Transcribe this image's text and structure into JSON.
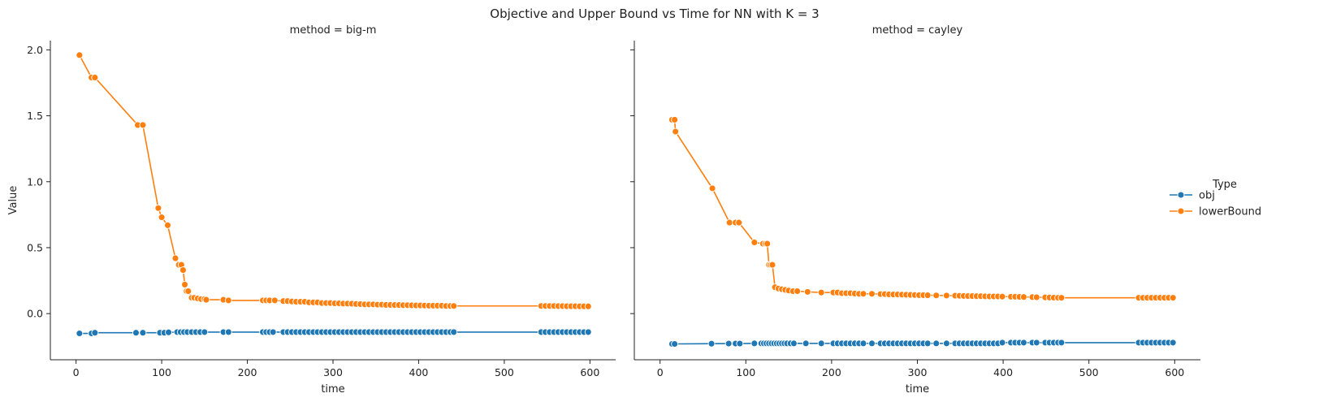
{
  "chart_data": {
    "type": "line",
    "title": "Objective and Upper Bound vs Time for NN with K = 3",
    "xlabel": "time",
    "ylabel": "Value",
    "xlim": [
      -30,
      630
    ],
    "ylim": [
      -0.35,
      2.07
    ],
    "xticks": [
      0,
      100,
      200,
      300,
      400,
      500,
      600
    ],
    "yticks": [
      0.0,
      0.5,
      1.0,
      1.5,
      2.0
    ],
    "ytick_labels": [
      "0.0",
      "0.5",
      "1.0",
      "1.5",
      "2.0"
    ],
    "grid": false,
    "legend": {
      "title": "Type",
      "placement": "right",
      "entries": [
        {
          "name": "obj",
          "color": "#1f77b4"
        },
        {
          "name": "lowerBound",
          "color": "#ff7f0e"
        }
      ]
    },
    "panels": [
      {
        "title": "method = big-m",
        "series": [
          {
            "name": "obj",
            "color": "#1f77b4",
            "x": [
              4,
              18,
              22,
              70,
              78,
              98,
              103,
              108,
              118,
              122,
              126,
              130,
              135,
              140,
              145,
              150,
              172,
              178,
              218,
              222,
              226,
              230,
              242,
              247,
              252,
              257,
              262,
              267,
              272,
              277,
              282,
              287,
              292,
              297,
              302,
              307,
              312,
              317,
              322,
              327,
              332,
              337,
              342,
              347,
              352,
              357,
              362,
              367,
              372,
              377,
              382,
              387,
              392,
              397,
              402,
              407,
              412,
              417,
              422,
              427,
              432,
              437,
              441,
              543,
              548,
              553,
              558,
              563,
              568,
              573,
              578,
              583,
              588,
              593,
              598
            ],
            "y": [
              -0.15,
              -0.15,
              -0.145,
              -0.145,
              -0.145,
              -0.145,
              -0.145,
              -0.142,
              -0.14,
              -0.14,
              -0.14,
              -0.14,
              -0.14,
              -0.14,
              -0.14,
              -0.14,
              -0.14,
              -0.14,
              -0.14,
              -0.14,
              -0.14,
              -0.14,
              -0.14,
              -0.14,
              -0.14,
              -0.14,
              -0.14,
              -0.14,
              -0.14,
              -0.14,
              -0.14,
              -0.14,
              -0.14,
              -0.14,
              -0.14,
              -0.14,
              -0.14,
              -0.14,
              -0.14,
              -0.14,
              -0.14,
              -0.14,
              -0.14,
              -0.14,
              -0.14,
              -0.14,
              -0.14,
              -0.14,
              -0.14,
              -0.14,
              -0.14,
              -0.14,
              -0.14,
              -0.14,
              -0.14,
              -0.14,
              -0.14,
              -0.14,
              -0.14,
              -0.14,
              -0.14,
              -0.14,
              -0.14,
              -0.14,
              -0.14,
              -0.14,
              -0.14,
              -0.14,
              -0.14,
              -0.14,
              -0.14,
              -0.14,
              -0.14,
              -0.14,
              -0.14
            ]
          },
          {
            "name": "lowerBound",
            "color": "#ff7f0e",
            "x": [
              4,
              18,
              22,
              72,
              78,
              96,
              100,
              107,
              116,
              120,
              123,
              125,
              127,
              129,
              131,
              135,
              138,
              142,
              146,
              150,
              152,
              172,
              178,
              218,
              222,
              226,
              232,
              242,
              247,
              252,
              257,
              262,
              267,
              272,
              277,
              282,
              287,
              292,
              297,
              302,
              307,
              312,
              317,
              322,
              327,
              332,
              337,
              342,
              347,
              352,
              357,
              362,
              367,
              372,
              377,
              382,
              387,
              392,
              397,
              402,
              407,
              412,
              417,
              422,
              427,
              432,
              437,
              441,
              543,
              548,
              553,
              558,
              563,
              568,
              573,
              578,
              583,
              588,
              593,
              598
            ],
            "y": [
              1.96,
              1.79,
              1.79,
              1.43,
              1.43,
              0.8,
              0.73,
              0.67,
              0.42,
              0.37,
              0.37,
              0.33,
              0.22,
              0.17,
              0.17,
              0.12,
              0.12,
              0.115,
              0.11,
              0.11,
              0.105,
              0.105,
              0.1,
              0.1,
              0.1,
              0.1,
              0.1,
              0.095,
              0.095,
              0.092,
              0.09,
              0.09,
              0.09,
              0.085,
              0.085,
              0.085,
              0.08,
              0.08,
              0.08,
              0.078,
              0.078,
              0.076,
              0.076,
              0.075,
              0.073,
              0.072,
              0.07,
              0.07,
              0.07,
              0.068,
              0.068,
              0.066,
              0.066,
              0.065,
              0.065,
              0.064,
              0.064,
              0.063,
              0.062,
              0.062,
              0.061,
              0.06,
              0.06,
              0.06,
              0.06,
              0.058,
              0.058,
              0.058,
              0.058,
              0.058,
              0.058,
              0.058,
              0.057,
              0.057,
              0.056,
              0.056,
              0.056,
              0.055,
              0.055,
              0.055
            ]
          }
        ]
      },
      {
        "title": "method = cayley",
        "series": [
          {
            "name": "obj",
            "color": "#1f77b4",
            "x": [
              14,
              17,
              60,
              80,
              88,
              93,
              110,
              118,
              121,
              124,
              127,
              130,
              133,
              136,
              139,
              142,
              145,
              148,
              152,
              156,
              170,
              188,
              202,
              207,
              212,
              217,
              222,
              227,
              232,
              237,
              247,
              257,
              262,
              267,
              272,
              277,
              282,
              287,
              292,
              297,
              302,
              307,
              312,
              322,
              334,
              344,
              349,
              354,
              359,
              364,
              369,
              374,
              379,
              384,
              389,
              394,
              399,
              409,
              414,
              419,
              424,
              434,
              439,
              449,
              454,
              459,
              464,
              468,
              558,
              563,
              568,
              573,
              578,
              583,
              588,
              593,
              598
            ],
            "y": [
              -0.23,
              -0.23,
              -0.228,
              -0.227,
              -0.227,
              -0.227,
              -0.226,
              -0.226,
              -0.226,
              -0.226,
              -0.226,
              -0.226,
              -0.226,
              -0.226,
              -0.226,
              -0.226,
              -0.226,
              -0.226,
              -0.226,
              -0.226,
              -0.226,
              -0.226,
              -0.226,
              -0.226,
              -0.226,
              -0.226,
              -0.226,
              -0.226,
              -0.226,
              -0.226,
              -0.226,
              -0.226,
              -0.226,
              -0.226,
              -0.226,
              -0.226,
              -0.226,
              -0.226,
              -0.226,
              -0.226,
              -0.226,
              -0.226,
              -0.226,
              -0.226,
              -0.226,
              -0.226,
              -0.226,
              -0.226,
              -0.226,
              -0.226,
              -0.226,
              -0.226,
              -0.226,
              -0.226,
              -0.226,
              -0.226,
              -0.22,
              -0.22,
              -0.22,
              -0.22,
              -0.22,
              -0.22,
              -0.22,
              -0.22,
              -0.22,
              -0.22,
              -0.22,
              -0.22,
              -0.22,
              -0.22,
              -0.22,
              -0.22,
              -0.22,
              -0.22,
              -0.22,
              -0.22,
              -0.22
            ]
          },
          {
            "name": "lowerBound",
            "color": "#ff7f0e",
            "x": [
              14,
              17,
              18,
              61,
              81,
              88,
              92,
              110,
              120,
              123,
              125,
              127,
              129,
              131,
              134,
              138,
              142,
              146,
              150,
              155,
              160,
              172,
              188,
              202,
              207,
              212,
              217,
              222,
              227,
              232,
              237,
              247,
              257,
              262,
              267,
              272,
              277,
              282,
              287,
              292,
              297,
              302,
              307,
              312,
              322,
              334,
              344,
              349,
              354,
              359,
              364,
              369,
              374,
              379,
              384,
              389,
              394,
              399,
              409,
              414,
              419,
              424,
              434,
              439,
              449,
              454,
              459,
              464,
              468,
              558,
              563,
              568,
              573,
              578,
              583,
              588,
              593,
              598
            ],
            "y": [
              1.47,
              1.47,
              1.38,
              0.95,
              0.69,
              0.69,
              0.69,
              0.54,
              0.53,
              0.53,
              0.53,
              0.37,
              0.37,
              0.37,
              0.2,
              0.19,
              0.185,
              0.18,
              0.175,
              0.17,
              0.17,
              0.165,
              0.16,
              0.16,
              0.16,
              0.155,
              0.155,
              0.155,
              0.152,
              0.15,
              0.15,
              0.15,
              0.148,
              0.148,
              0.146,
              0.145,
              0.145,
              0.144,
              0.143,
              0.142,
              0.141,
              0.14,
              0.14,
              0.139,
              0.138,
              0.137,
              0.136,
              0.135,
              0.134,
              0.133,
              0.133,
              0.132,
              0.132,
              0.131,
              0.13,
              0.13,
              0.13,
              0.129,
              0.128,
              0.128,
              0.127,
              0.126,
              0.125,
              0.124,
              0.123,
              0.122,
              0.121,
              0.12,
              0.12,
              0.12,
              0.12,
              0.12,
              0.12,
              0.12,
              0.12,
              0.12,
              0.12,
              0.12
            ]
          }
        ]
      }
    ]
  }
}
